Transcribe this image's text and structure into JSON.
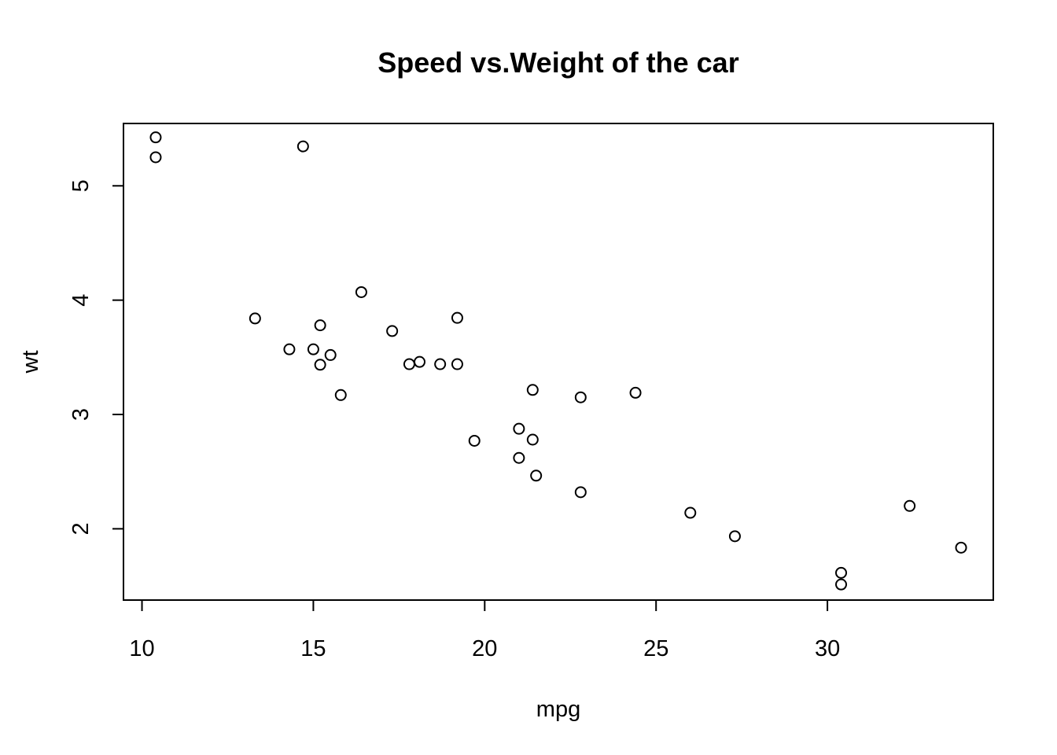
{
  "chart_data": {
    "type": "scatter",
    "title": "Speed vs.Weight of the car",
    "xlabel": "mpg",
    "ylabel": "wt",
    "xlim": [
      9.46,
      34.84
    ],
    "ylim": [
      1.3766,
      5.5454
    ],
    "xticks": [
      10,
      15,
      20,
      25,
      30
    ],
    "yticks": [
      2,
      3,
      4,
      5
    ],
    "grid": false,
    "legend": "none",
    "point_color": "#000000",
    "points": [
      {
        "x": 21.0,
        "y": 2.62
      },
      {
        "x": 21.0,
        "y": 2.875
      },
      {
        "x": 22.8,
        "y": 2.32
      },
      {
        "x": 21.4,
        "y": 3.215
      },
      {
        "x": 18.7,
        "y": 3.44
      },
      {
        "x": 18.1,
        "y": 3.46
      },
      {
        "x": 14.3,
        "y": 3.57
      },
      {
        "x": 24.4,
        "y": 3.19
      },
      {
        "x": 22.8,
        "y": 3.15
      },
      {
        "x": 19.2,
        "y": 3.44
      },
      {
        "x": 17.8,
        "y": 3.44
      },
      {
        "x": 16.4,
        "y": 4.07
      },
      {
        "x": 17.3,
        "y": 3.73
      },
      {
        "x": 15.2,
        "y": 3.78
      },
      {
        "x": 10.4,
        "y": 5.25
      },
      {
        "x": 10.4,
        "y": 5.424
      },
      {
        "x": 14.7,
        "y": 5.345
      },
      {
        "x": 32.4,
        "y": 2.2
      },
      {
        "x": 30.4,
        "y": 1.615
      },
      {
        "x": 33.9,
        "y": 1.835
      },
      {
        "x": 21.5,
        "y": 2.465
      },
      {
        "x": 15.5,
        "y": 3.52
      },
      {
        "x": 15.2,
        "y": 3.435
      },
      {
        "x": 13.3,
        "y": 3.84
      },
      {
        "x": 19.2,
        "y": 3.845
      },
      {
        "x": 27.3,
        "y": 1.935
      },
      {
        "x": 26.0,
        "y": 2.14
      },
      {
        "x": 30.4,
        "y": 1.513
      },
      {
        "x": 15.8,
        "y": 3.17
      },
      {
        "x": 19.7,
        "y": 2.77
      },
      {
        "x": 15.0,
        "y": 3.57
      },
      {
        "x": 21.4,
        "y": 2.78
      }
    ]
  }
}
